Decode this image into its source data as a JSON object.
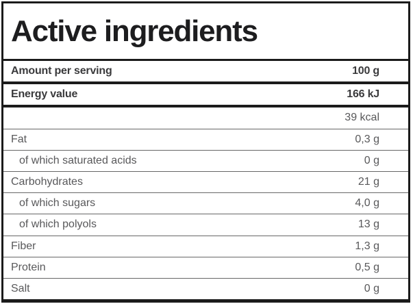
{
  "title": "Active ingredients",
  "colors": {
    "border_black": "#1b1b1b",
    "divider_gray": "#666666",
    "title_text": "#1d1d1f",
    "bold_row_text": "#3a3a3c",
    "regular_row_text": "#58585a",
    "background": "#ffffff"
  },
  "rows": [
    {
      "label": "Amount per serving",
      "value": "100 g",
      "bold": true,
      "indent": false,
      "divider": "thick"
    },
    {
      "label": "Energy value",
      "value": "166 kJ",
      "bold": true,
      "indent": false,
      "divider": "thick"
    },
    {
      "label": "",
      "value": "39 kcal",
      "bold": false,
      "indent": false,
      "divider": "thin"
    },
    {
      "label": "Fat",
      "value": "0,3 g",
      "bold": false,
      "indent": false,
      "divider": "thin"
    },
    {
      "label": "of which saturated acids",
      "value": "0 g",
      "bold": false,
      "indent": true,
      "divider": "thin"
    },
    {
      "label": "Carbohydrates",
      "value": "21 g",
      "bold": false,
      "indent": false,
      "divider": "thin"
    },
    {
      "label": "of which sugars",
      "value": "4,0 g",
      "bold": false,
      "indent": true,
      "divider": "thin"
    },
    {
      "label": "of which polyols",
      "value": "13 g",
      "bold": false,
      "indent": true,
      "divider": "thin"
    },
    {
      "label": "Fiber",
      "value": "1,3 g",
      "bold": false,
      "indent": false,
      "divider": "thin"
    },
    {
      "label": "Protein",
      "value": "0,5 g",
      "bold": false,
      "indent": false,
      "divider": "thin"
    },
    {
      "label": "Salt",
      "value": "0 g",
      "bold": false,
      "indent": false,
      "divider": "none"
    }
  ]
}
